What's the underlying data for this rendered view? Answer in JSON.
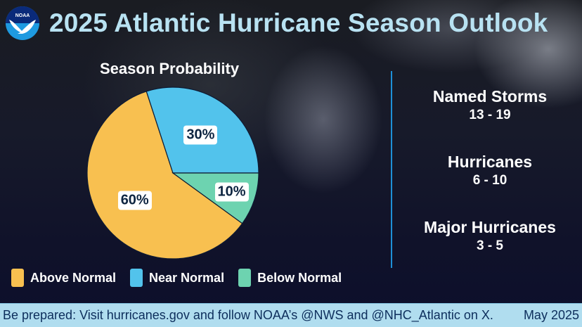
{
  "header": {
    "logo_text": "NOAA",
    "title": "2025 Atlantic Hurricane Season Outlook"
  },
  "chart_data": {
    "type": "pie",
    "title": "Season Probability",
    "categories": [
      "Above Normal",
      "Near Normal",
      "Below Normal"
    ],
    "values": [
      60,
      30,
      10
    ],
    "labels": [
      "60%",
      "30%",
      "10%"
    ],
    "colors": [
      "#f8c050",
      "#52c3ec",
      "#6dd3b0"
    ],
    "legend_position": "bottom"
  },
  "stats": [
    {
      "name": "Named Storms",
      "value": "13 - 19"
    },
    {
      "name": "Hurricanes",
      "value": "6 - 10"
    },
    {
      "name": "Major Hurricanes",
      "value": "3 - 5"
    }
  ],
  "footer": {
    "message": "Be prepared: Visit hurricanes.gov and follow NOAA’s @NWS and @NHC_Atlantic on X.",
    "date": "May 2025"
  },
  "colors": {
    "title": "#b8e2f2",
    "footer_bg": "#b0ddef",
    "footer_text": "#0d2e5c",
    "divider": "#1e90d8"
  }
}
